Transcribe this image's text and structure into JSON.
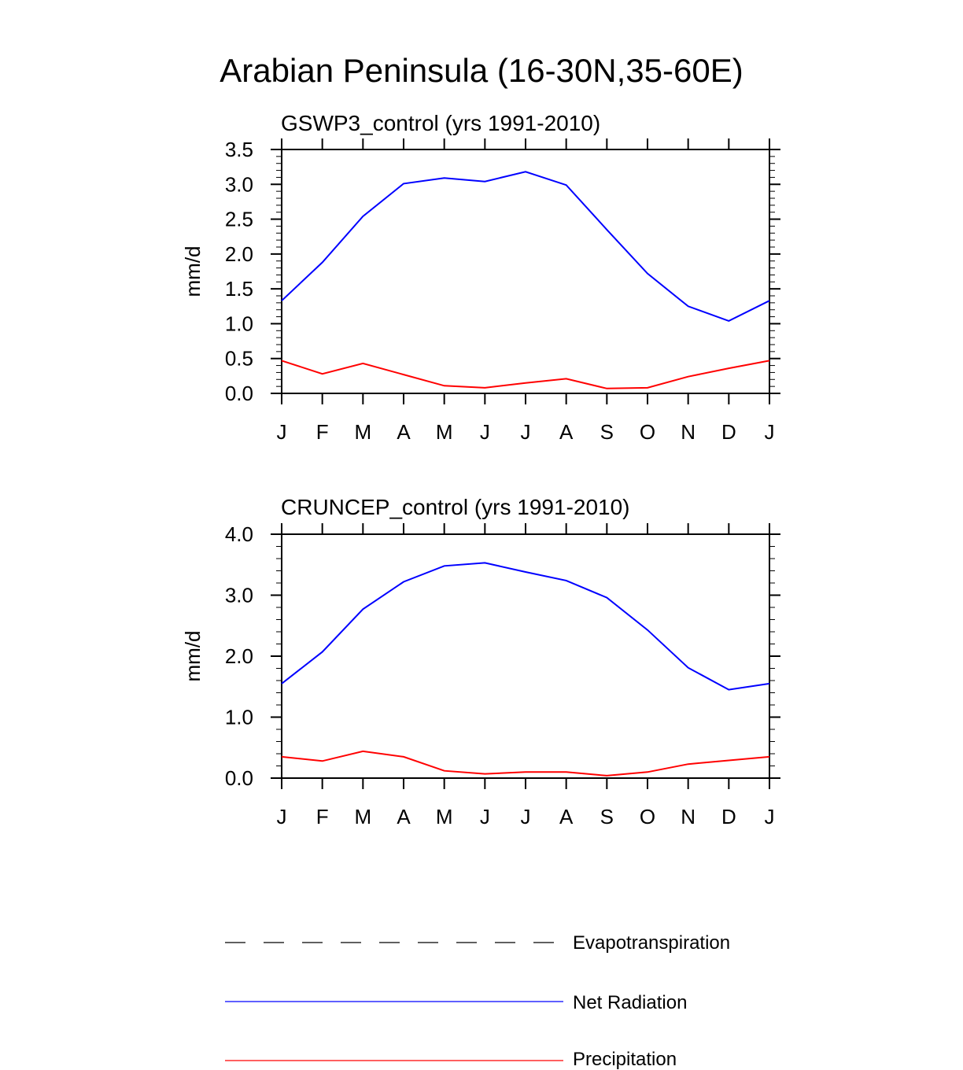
{
  "title": "Arabian Peninsula (16-30N,35-60E)",
  "chart_data": [
    {
      "type": "line",
      "title": "GSWP3_control (yrs 1991-2010)",
      "xlabel": "",
      "ylabel": "mm/d",
      "categories": [
        "J",
        "F",
        "M",
        "A",
        "M",
        "J",
        "J",
        "A",
        "S",
        "O",
        "N",
        "D",
        "J"
      ],
      "ylim": [
        0,
        3.5
      ],
      "y_ticks": [
        "0.0",
        "0.5",
        "1.0",
        "1.5",
        "2.0",
        "2.5",
        "3.0",
        "3.5"
      ],
      "series": [
        {
          "name": "Net Radiation",
          "color": "#0000ff",
          "values": [
            1.33,
            1.88,
            2.54,
            3.01,
            3.09,
            3.04,
            3.18,
            2.99,
            2.35,
            1.72,
            1.25,
            1.04,
            1.33
          ]
        },
        {
          "name": "Precipitation",
          "color": "#ff0000",
          "values": [
            0.47,
            0.28,
            0.43,
            0.27,
            0.11,
            0.08,
            0.15,
            0.21,
            0.07,
            0.08,
            0.24,
            0.36,
            0.47
          ]
        }
      ]
    },
    {
      "type": "line",
      "title": "CRUNCEP_control (yrs 1991-2010)",
      "xlabel": "",
      "ylabel": "mm/d",
      "categories": [
        "J",
        "F",
        "M",
        "A",
        "M",
        "J",
        "J",
        "A",
        "S",
        "O",
        "N",
        "D",
        "J"
      ],
      "ylim": [
        0,
        4.0
      ],
      "y_ticks": [
        "0.0",
        "1.0",
        "2.0",
        "3.0",
        "4.0"
      ],
      "series": [
        {
          "name": "Net Radiation",
          "color": "#0000ff",
          "values": [
            1.55,
            2.07,
            2.77,
            3.22,
            3.48,
            3.53,
            3.38,
            3.24,
            2.96,
            2.43,
            1.81,
            1.45,
            1.55
          ]
        },
        {
          "name": "Precipitation",
          "color": "#ff0000",
          "values": [
            0.35,
            0.28,
            0.44,
            0.35,
            0.12,
            0.07,
            0.1,
            0.1,
            0.04,
            0.1,
            0.23,
            0.29,
            0.35
          ]
        }
      ]
    }
  ],
  "legend": [
    {
      "label": "Evapotranspiration",
      "color": "#000000",
      "style": "dashed"
    },
    {
      "label": "Net Radiation",
      "color": "#0000ff",
      "style": "solid"
    },
    {
      "label": "Precipitation",
      "color": "#ff0000",
      "style": "solid"
    }
  ]
}
